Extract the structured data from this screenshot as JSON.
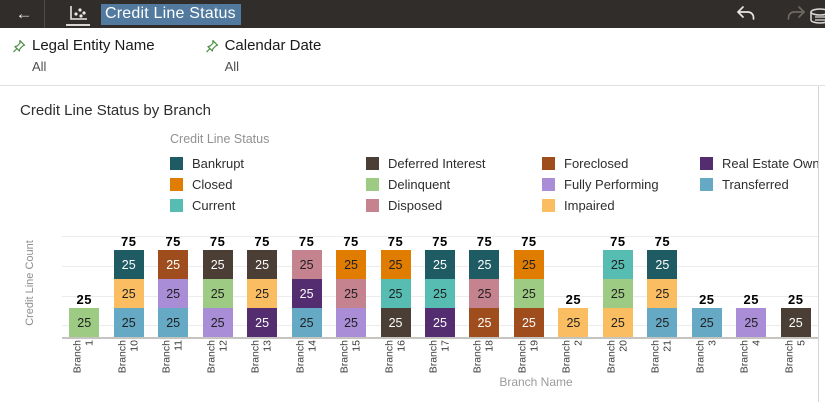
{
  "header": {
    "back_icon": "←",
    "title": "Credit Line Status",
    "undo_label": "undo",
    "redo_label": "redo"
  },
  "filters": [
    {
      "label": "Legal Entity Name",
      "value": "All"
    },
    {
      "label": "Calendar Date",
      "value": "All"
    }
  ],
  "chart_data": {
    "type": "bar",
    "stacked": true,
    "title": "Credit Line Status by Branch",
    "legend_title": "Credit Line Status",
    "legend_position": "top",
    "xlabel": "Branch Name",
    "ylabel": "Credit Line Count",
    "ylim": [
      0,
      85
    ],
    "grid": true,
    "statuses": [
      {
        "label": "Bankrupt",
        "color": "#1e5b63",
        "text_color": "#ffffff"
      },
      {
        "label": "Closed",
        "color": "#e07c00",
        "text_color": "#1f1f1f"
      },
      {
        "label": "Current",
        "color": "#57bcb2",
        "text_color": "#1f1f1f"
      },
      {
        "label": "Deferred Interest",
        "color": "#4a3e35",
        "text_color": "#ffffff"
      },
      {
        "label": "Delinquent",
        "color": "#9ecb84",
        "text_color": "#1f1f1f"
      },
      {
        "label": "Disposed",
        "color": "#c5828f",
        "text_color": "#1f1f1f"
      },
      {
        "label": "Foreclosed",
        "color": "#a04d1e",
        "text_color": "#ffffff"
      },
      {
        "label": "Fully Performing",
        "color": "#aa8dd7",
        "text_color": "#1f1f1f"
      },
      {
        "label": "Impaired",
        "color": "#fabd62",
        "text_color": "#1f1f1f"
      },
      {
        "label": "Real Estate Owned",
        "color": "#532d70",
        "text_color": "#ffffff"
      },
      {
        "label": "Transferred",
        "color": "#66a9c5",
        "text_color": "#1f1f1f"
      }
    ],
    "bars": [
      {
        "category": "Branch 1",
        "segments": [
          "Delinquent"
        ],
        "values": [
          25
        ],
        "total": 25
      },
      {
        "category": "Branch 10",
        "segments": [
          "Transferred",
          "Impaired",
          "Bankrupt"
        ],
        "values": [
          25,
          25,
          25
        ],
        "total": 75
      },
      {
        "category": "Branch 11",
        "segments": [
          "Transferred",
          "Fully Performing",
          "Foreclosed"
        ],
        "values": [
          25,
          25,
          25
        ],
        "total": 75
      },
      {
        "category": "Branch 12",
        "segments": [
          "Fully Performing",
          "Delinquent",
          "Deferred Interest"
        ],
        "values": [
          25,
          25,
          25
        ],
        "total": 75
      },
      {
        "category": "Branch 13",
        "segments": [
          "Real Estate Owned",
          "Impaired",
          "Deferred Interest"
        ],
        "values": [
          25,
          25,
          25
        ],
        "total": 75
      },
      {
        "category": "Branch 14",
        "segments": [
          "Transferred",
          "Real Estate Owned",
          "Disposed"
        ],
        "values": [
          25,
          25,
          25
        ],
        "total": 75
      },
      {
        "category": "Branch 15",
        "segments": [
          "Fully Performing",
          "Disposed",
          "Closed"
        ],
        "values": [
          25,
          25,
          25
        ],
        "total": 75
      },
      {
        "category": "Branch 16",
        "segments": [
          "Deferred Interest",
          "Current",
          "Closed"
        ],
        "values": [
          25,
          25,
          25
        ],
        "total": 75
      },
      {
        "category": "Branch 17",
        "segments": [
          "Real Estate Owned",
          "Current",
          "Bankrupt"
        ],
        "values": [
          25,
          25,
          25
        ],
        "total": 75
      },
      {
        "category": "Branch 18",
        "segments": [
          "Foreclosed",
          "Disposed",
          "Bankrupt"
        ],
        "values": [
          25,
          25,
          25
        ],
        "total": 75
      },
      {
        "category": "Branch 19",
        "segments": [
          "Foreclosed",
          "Delinquent",
          "Closed"
        ],
        "values": [
          25,
          25,
          25
        ],
        "total": 75
      },
      {
        "category": "Branch 2",
        "segments": [
          "Impaired"
        ],
        "values": [
          25
        ],
        "total": 25
      },
      {
        "category": "Branch 20",
        "segments": [
          "Impaired",
          "Delinquent",
          "Current"
        ],
        "values": [
          25,
          25,
          25
        ],
        "total": 75
      },
      {
        "category": "Branch 21",
        "segments": [
          "Transferred",
          "Impaired",
          "Bankrupt"
        ],
        "values": [
          25,
          25,
          25
        ],
        "total": 75
      },
      {
        "category": "Branch 3",
        "segments": [
          "Transferred"
        ],
        "values": [
          25
        ],
        "total": 25
      },
      {
        "category": "Branch 4",
        "segments": [
          "Fully Performing"
        ],
        "values": [
          25
        ],
        "total": 25
      },
      {
        "category": "Branch 5",
        "segments": [
          "Deferred Interest"
        ],
        "values": [
          25
        ],
        "total": 25
      }
    ]
  }
}
